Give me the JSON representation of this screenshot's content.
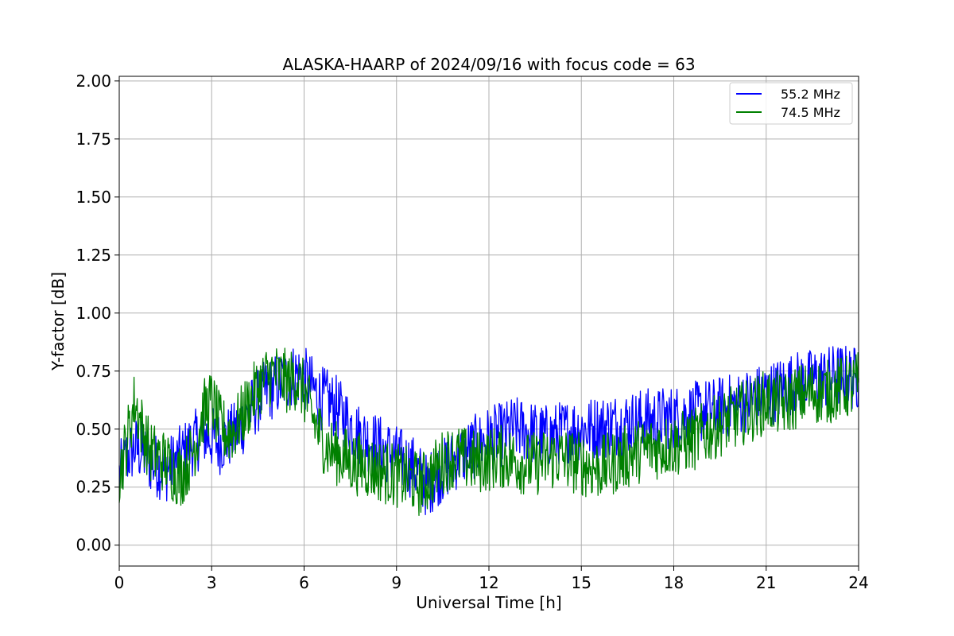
{
  "chart_data": {
    "type": "line",
    "title": "ALASKA-HAARP of 2024/09/16 with focus code = 63",
    "xlabel": "Universal Time [h]",
    "ylabel": "Y-factor [dB]",
    "xlim": [
      0,
      24
    ],
    "ylim": [
      -0.09,
      2.02
    ],
    "xticks": [
      0,
      3,
      6,
      9,
      12,
      15,
      18,
      21,
      24
    ],
    "xtick_labels": [
      "0",
      "3",
      "6",
      "9",
      "12",
      "15",
      "18",
      "21",
      "24"
    ],
    "yticks": [
      0.0,
      0.25,
      0.5,
      0.75,
      1.0,
      1.25,
      1.5,
      1.75,
      2.0
    ],
    "ytick_labels": [
      "0.00",
      "0.25",
      "0.50",
      "0.75",
      "1.00",
      "1.25",
      "1.50",
      "1.75",
      "2.00"
    ],
    "grid": true,
    "legend_position": "top-right",
    "series": [
      {
        "name": "55.2 MHz",
        "color": "#0000ff",
        "x": [
          0,
          0.25,
          0.5,
          0.75,
          1,
          1.25,
          1.5,
          1.75,
          2,
          2.25,
          2.5,
          2.75,
          3,
          3.25,
          3.5,
          3.75,
          4,
          4.25,
          4.5,
          4.75,
          5,
          5.25,
          5.5,
          5.75,
          6,
          6.25,
          6.5,
          6.75,
          7,
          7.25,
          7.5,
          7.75,
          8,
          8.25,
          8.5,
          8.75,
          9,
          9.25,
          9.5,
          9.75,
          10,
          10.25,
          10.5,
          10.75,
          11,
          11.25,
          11.5,
          11.75,
          12,
          12.25,
          12.5,
          12.75,
          13,
          13.25,
          13.5,
          13.75,
          14,
          14.25,
          14.5,
          14.75,
          15,
          15.25,
          15.5,
          15.75,
          16,
          16.25,
          16.5,
          16.75,
          17,
          17.25,
          17.5,
          17.75,
          18,
          18.25,
          18.5,
          18.75,
          19,
          19.25,
          19.5,
          19.75,
          20,
          20.25,
          20.5,
          20.75,
          21,
          21.25,
          21.5,
          21.75,
          22,
          22.25,
          22.5,
          22.75,
          23,
          23.25,
          23.5,
          23.75,
          24
        ],
        "y": [
          0.3,
          0.38,
          0.42,
          0.4,
          0.36,
          0.34,
          0.32,
          0.35,
          0.38,
          0.42,
          0.45,
          0.48,
          0.46,
          0.44,
          0.46,
          0.48,
          0.52,
          0.58,
          0.62,
          0.66,
          0.68,
          0.7,
          0.72,
          0.74,
          0.72,
          0.68,
          0.64,
          0.62,
          0.6,
          0.56,
          0.52,
          0.48,
          0.46,
          0.44,
          0.42,
          0.4,
          0.38,
          0.36,
          0.34,
          0.3,
          0.25,
          0.3,
          0.32,
          0.35,
          0.38,
          0.4,
          0.42,
          0.44,
          0.46,
          0.47,
          0.48,
          0.5,
          0.5,
          0.49,
          0.48,
          0.47,
          0.47,
          0.48,
          0.49,
          0.5,
          0.5,
          0.5,
          0.51,
          0.51,
          0.52,
          0.52,
          0.53,
          0.53,
          0.54,
          0.54,
          0.54,
          0.55,
          0.55,
          0.56,
          0.56,
          0.57,
          0.58,
          0.58,
          0.59,
          0.6,
          0.6,
          0.62,
          0.63,
          0.64,
          0.65,
          0.66,
          0.68,
          0.69,
          0.7,
          0.7,
          0.71,
          0.72,
          0.72,
          0.73,
          0.73,
          0.72,
          0.72
        ]
      },
      {
        "name": "74.5 MHz",
        "color": "#008000",
        "x": [
          0,
          0.25,
          0.5,
          0.75,
          1,
          1.25,
          1.5,
          1.75,
          2,
          2.25,
          2.5,
          2.75,
          3,
          3.25,
          3.5,
          3.75,
          4,
          4.25,
          4.5,
          4.75,
          5,
          5.25,
          5.5,
          5.75,
          6,
          6.25,
          6.5,
          6.75,
          7,
          7.25,
          7.5,
          7.75,
          8,
          8.25,
          8.5,
          8.75,
          9,
          9.25,
          9.5,
          9.75,
          10,
          10.25,
          10.5,
          10.75,
          11,
          11.25,
          11.5,
          11.75,
          12,
          12.25,
          12.5,
          12.75,
          13,
          13.25,
          13.5,
          13.75,
          14,
          14.25,
          14.5,
          14.75,
          15,
          15.25,
          15.5,
          15.75,
          16,
          16.25,
          16.5,
          16.75,
          17,
          17.25,
          17.5,
          17.75,
          18,
          18.25,
          18.5,
          18.75,
          19,
          19.25,
          19.5,
          19.75,
          20,
          20.25,
          20.5,
          20.75,
          21,
          21.25,
          21.5,
          21.75,
          22,
          22.25,
          22.5,
          22.75,
          23,
          23.25,
          23.5,
          23.75,
          24
        ],
        "y": [
          0.3,
          0.45,
          0.62,
          0.5,
          0.4,
          0.38,
          0.36,
          0.32,
          0.3,
          0.36,
          0.45,
          0.58,
          0.62,
          0.52,
          0.48,
          0.5,
          0.56,
          0.62,
          0.68,
          0.72,
          0.74,
          0.72,
          0.7,
          0.72,
          0.66,
          0.56,
          0.48,
          0.42,
          0.4,
          0.38,
          0.36,
          0.35,
          0.34,
          0.33,
          0.32,
          0.31,
          0.3,
          0.29,
          0.28,
          0.26,
          0.28,
          0.32,
          0.36,
          0.38,
          0.38,
          0.37,
          0.36,
          0.36,
          0.37,
          0.38,
          0.38,
          0.37,
          0.36,
          0.35,
          0.35,
          0.36,
          0.37,
          0.38,
          0.37,
          0.36,
          0.35,
          0.34,
          0.33,
          0.34,
          0.35,
          0.37,
          0.38,
          0.4,
          0.41,
          0.42,
          0.42,
          0.43,
          0.43,
          0.44,
          0.45,
          0.46,
          0.48,
          0.5,
          0.52,
          0.54,
          0.55,
          0.57,
          0.58,
          0.6,
          0.62,
          0.62,
          0.6,
          0.62,
          0.64,
          0.65,
          0.66,
          0.66,
          0.66,
          0.67,
          0.68,
          0.68,
          0.7
        ]
      }
    ]
  }
}
